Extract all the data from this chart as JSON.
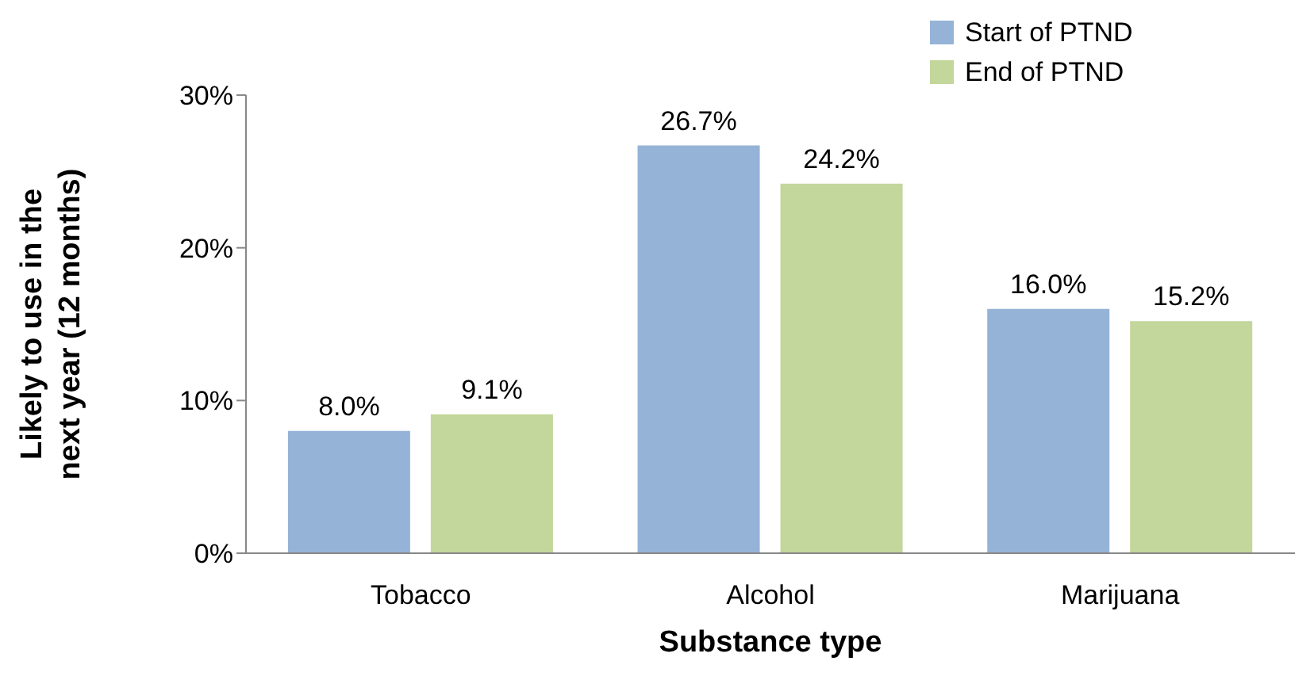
{
  "chart_data": {
    "type": "bar",
    "xlabel": "Substance type",
    "ylabel": "Likely to use in the\nnext year  (12 months)",
    "categories": [
      "Tobacco",
      "Alcohol",
      "Marijuana"
    ],
    "series": [
      {
        "name": "Start of PTND",
        "color": "#95b3d7",
        "values": [
          8.0,
          26.7,
          16.0
        ],
        "value_labels": [
          "8.0%",
          "26.7%",
          "16.0%"
        ]
      },
      {
        "name": "End of PTND",
        "color": "#c3d69b",
        "values": [
          9.1,
          24.2,
          15.2
        ],
        "value_labels": [
          "9.1%",
          "24.2%",
          "15.2%"
        ]
      }
    ],
    "ylim": [
      0,
      30
    ],
    "yticks": [
      {
        "value": 0,
        "label": "0%"
      },
      {
        "value": 10,
        "label": "10%"
      },
      {
        "value": 20,
        "label": "20%"
      },
      {
        "value": 30,
        "label": "30%"
      }
    ],
    "grid": false,
    "legend": "top right"
  }
}
